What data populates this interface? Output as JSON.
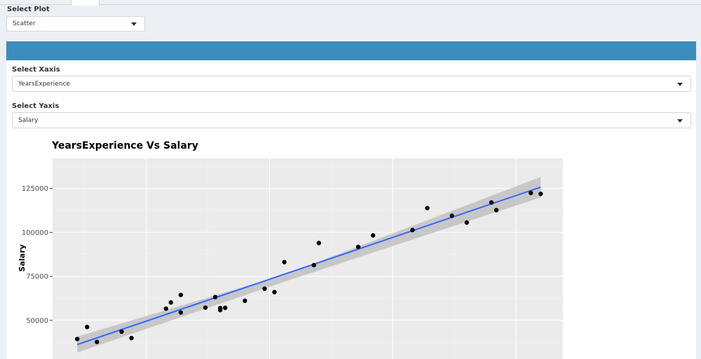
{
  "select_plot": {
    "label": "Select Plot",
    "value": "Scatter"
  },
  "panel": {
    "x_axis": {
      "label": "Select Xaxis",
      "value": "YearsExperience"
    },
    "y_axis": {
      "label": "Select Yaxis",
      "value": "Salary"
    }
  },
  "colors": {
    "header": "#3c8dbc",
    "panel_bg": "#ebebeb",
    "fit_line": "#3366ff",
    "confidence_band": "#b8b8b8",
    "points": "#000000"
  },
  "chart_data": {
    "type": "scatter",
    "title": "YearsExperience  Vs  Salary",
    "xlabel": "",
    "ylabel": "Salary",
    "ylim": [
      28000,
      142000
    ],
    "yticks": [
      50000,
      75000,
      100000,
      125000
    ],
    "ytick_labels": [
      "50000",
      "75000",
      "100000",
      "125000"
    ],
    "grid": true,
    "points": [
      {
        "x": 1.1,
        "y": 39343
      },
      {
        "x": 1.3,
        "y": 46205
      },
      {
        "x": 1.5,
        "y": 37731
      },
      {
        "x": 2.0,
        "y": 43525
      },
      {
        "x": 2.2,
        "y": 39891
      },
      {
        "x": 2.9,
        "y": 56642
      },
      {
        "x": 3.0,
        "y": 60150
      },
      {
        "x": 3.2,
        "y": 54445
      },
      {
        "x": 3.2,
        "y": 64445
      },
      {
        "x": 3.7,
        "y": 57189
      },
      {
        "x": 3.9,
        "y": 63218
      },
      {
        "x": 4.0,
        "y": 55794
      },
      {
        "x": 4.0,
        "y": 56957
      },
      {
        "x": 4.1,
        "y": 57081
      },
      {
        "x": 4.5,
        "y": 61111
      },
      {
        "x": 4.9,
        "y": 67938
      },
      {
        "x": 5.1,
        "y": 66029
      },
      {
        "x": 5.3,
        "y": 83088
      },
      {
        "x": 5.9,
        "y": 81363
      },
      {
        "x": 6.0,
        "y": 93940
      },
      {
        "x": 6.8,
        "y": 91738
      },
      {
        "x": 7.1,
        "y": 98273
      },
      {
        "x": 7.9,
        "y": 101302
      },
      {
        "x": 8.2,
        "y": 113812
      },
      {
        "x": 8.7,
        "y": 109431
      },
      {
        "x": 9.0,
        "y": 105582
      },
      {
        "x": 9.5,
        "y": 116969
      },
      {
        "x": 9.6,
        "y": 112635
      },
      {
        "x": 10.3,
        "y": 122391
      },
      {
        "x": 10.5,
        "y": 121872
      }
    ],
    "fit_line": {
      "x": [
        1.1,
        10.5
      ],
      "y": [
        36188,
        125693
      ]
    },
    "confidence_band": {
      "x": [
        1.1,
        5.3,
        10.5
      ],
      "lower": [
        31700,
        71900,
        119900
      ],
      "upper": [
        40700,
        75900,
        131500
      ]
    },
    "xlim": [
      0.6,
      10.95
    ]
  }
}
